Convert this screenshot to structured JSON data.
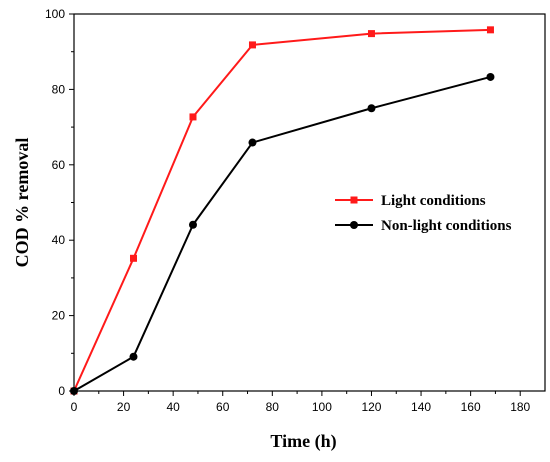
{
  "chart_data": {
    "type": "line",
    "xlabel": "Time (h)",
    "ylabel": "COD % removal",
    "xlim": [
      0,
      190
    ],
    "ylim": [
      0,
      100
    ],
    "x_ticks": [
      0,
      20,
      40,
      60,
      80,
      100,
      120,
      140,
      160,
      180
    ],
    "y_ticks": [
      0,
      20,
      40,
      60,
      80,
      100
    ],
    "grid": false,
    "legend_position": "center-right",
    "series": [
      {
        "name": "Light conditions",
        "color": "#ff1a1a",
        "marker": "square",
        "x": [
          0,
          24,
          48,
          72,
          120,
          168
        ],
        "y": [
          0,
          35.2,
          72.7,
          91.8,
          94.8,
          95.8
        ]
      },
      {
        "name": "Non-light conditions",
        "color": "#000000",
        "marker": "circle",
        "x": [
          0,
          24,
          48,
          72,
          120,
          168
        ],
        "y": [
          0,
          9.1,
          44.1,
          65.9,
          75.0,
          83.3
        ]
      }
    ]
  }
}
